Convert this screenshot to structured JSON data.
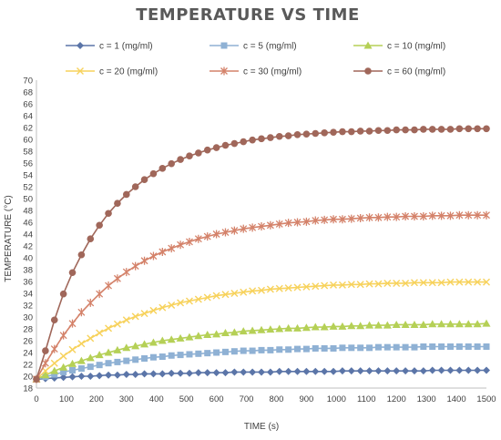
{
  "chart_data": {
    "type": "line",
    "title": "TEMPERATURE VS TIME",
    "xlabel": "TIME (s)",
    "ylabel": "TEMPERATURE (°C)",
    "xlim": [
      0,
      1500
    ],
    "ylim": [
      18,
      70
    ],
    "x_ticks": [
      0,
      100,
      200,
      300,
      400,
      500,
      600,
      700,
      800,
      900,
      1000,
      1100,
      1200,
      1300,
      1400,
      1500
    ],
    "y_ticks": [
      18,
      20,
      22,
      24,
      26,
      28,
      30,
      32,
      34,
      36,
      38,
      40,
      42,
      44,
      46,
      48,
      50,
      52,
      54,
      56,
      58,
      60,
      62,
      64,
      66,
      68,
      70
    ],
    "grid": false,
    "legend_position": "top",
    "x": [
      0,
      30,
      60,
      90,
      120,
      150,
      180,
      210,
      240,
      270,
      300,
      330,
      360,
      390,
      420,
      450,
      480,
      510,
      540,
      570,
      600,
      630,
      660,
      690,
      720,
      750,
      780,
      810,
      840,
      870,
      900,
      930,
      960,
      990,
      1020,
      1050,
      1080,
      1110,
      1140,
      1170,
      1200,
      1230,
      1260,
      1290,
      1320,
      1350,
      1380,
      1410,
      1440,
      1470,
      1500
    ],
    "series": [
      {
        "name": "c = 1 (mg/ml)",
        "color": "#5b75a8",
        "marker": "diamond",
        "values": [
          19.5,
          19.6,
          19.7,
          19.8,
          19.9,
          20.0,
          20.0,
          20.1,
          20.2,
          20.2,
          20.3,
          20.3,
          20.4,
          20.4,
          20.4,
          20.5,
          20.5,
          20.5,
          20.6,
          20.6,
          20.6,
          20.6,
          20.7,
          20.7,
          20.7,
          20.7,
          20.7,
          20.8,
          20.8,
          20.8,
          20.8,
          20.8,
          20.8,
          20.8,
          20.9,
          20.9,
          20.9,
          20.9,
          20.9,
          20.9,
          20.9,
          20.9,
          20.9,
          20.9,
          21.0,
          21.0,
          21.0,
          21.0,
          21.0,
          21.0,
          21.0
        ]
      },
      {
        "name": "c = 5 (mg/ml)",
        "color": "#8fb1d4",
        "marker": "square",
        "values": [
          19.5,
          19.9,
          20.3,
          20.7,
          21.0,
          21.3,
          21.6,
          21.9,
          22.2,
          22.4,
          22.6,
          22.8,
          23.0,
          23.2,
          23.3,
          23.5,
          23.6,
          23.7,
          23.8,
          23.9,
          24.0,
          24.1,
          24.2,
          24.3,
          24.3,
          24.4,
          24.4,
          24.5,
          24.5,
          24.6,
          24.6,
          24.7,
          24.7,
          24.7,
          24.8,
          24.8,
          24.8,
          24.8,
          24.9,
          24.9,
          24.9,
          24.9,
          24.9,
          25.0,
          25.0,
          25.0,
          25.0,
          25.0,
          25.0,
          25.0,
          25.0
        ]
      },
      {
        "name": "c = 10 (mg/ml)",
        "color": "#b5d056",
        "marker": "triangle",
        "values": [
          19.5,
          20.2,
          20.9,
          21.5,
          22.1,
          22.6,
          23.1,
          23.6,
          24.0,
          24.4,
          24.8,
          25.1,
          25.4,
          25.7,
          26.0,
          26.2,
          26.4,
          26.6,
          26.8,
          27.0,
          27.1,
          27.3,
          27.4,
          27.6,
          27.7,
          27.8,
          27.9,
          28.0,
          28.1,
          28.1,
          28.2,
          28.3,
          28.3,
          28.4,
          28.4,
          28.5,
          28.5,
          28.6,
          28.6,
          28.6,
          28.7,
          28.7,
          28.7,
          28.7,
          28.8,
          28.8,
          28.8,
          28.8,
          28.8,
          28.8,
          28.9
        ]
      },
      {
        "name": "c = 20 (mg/ml)",
        "color": "#f7d25c",
        "marker": "x",
        "values": [
          19.5,
          20.9,
          22.2,
          23.4,
          24.5,
          25.5,
          26.4,
          27.3,
          28.1,
          28.8,
          29.5,
          30.1,
          30.6,
          31.1,
          31.6,
          32.0,
          32.4,
          32.7,
          33.0,
          33.3,
          33.6,
          33.8,
          34.0,
          34.2,
          34.4,
          34.5,
          34.7,
          34.8,
          34.9,
          35.0,
          35.1,
          35.2,
          35.3,
          35.4,
          35.4,
          35.5,
          35.5,
          35.6,
          35.6,
          35.7,
          35.7,
          35.7,
          35.8,
          35.8,
          35.8,
          35.8,
          35.9,
          35.9,
          35.9,
          35.9,
          35.9
        ]
      },
      {
        "name": "c = 30 (mg/ml)",
        "color": "#d4826a",
        "marker": "star",
        "values": [
          19.5,
          22.2,
          24.6,
          26.9,
          28.9,
          30.8,
          32.4,
          33.9,
          35.3,
          36.5,
          37.6,
          38.6,
          39.5,
          40.3,
          41.0,
          41.6,
          42.2,
          42.7,
          43.2,
          43.6,
          44.0,
          44.3,
          44.6,
          44.9,
          45.1,
          45.3,
          45.5,
          45.7,
          45.9,
          46.0,
          46.1,
          46.3,
          46.4,
          46.5,
          46.5,
          46.6,
          46.7,
          46.8,
          46.8,
          46.9,
          46.9,
          47.0,
          47.0,
          47.0,
          47.1,
          47.1,
          47.1,
          47.2,
          47.2,
          47.2,
          47.2
        ]
      },
      {
        "name": "c = 60 (mg/ml)",
        "color": "#a0675a",
        "marker": "circle",
        "values": [
          19.5,
          24.3,
          29.5,
          33.9,
          37.5,
          40.5,
          43.2,
          45.5,
          47.5,
          49.2,
          50.7,
          52.0,
          53.2,
          54.2,
          55.1,
          55.9,
          56.6,
          57.2,
          57.7,
          58.2,
          58.6,
          59.0,
          59.3,
          59.6,
          59.9,
          60.1,
          60.3,
          60.5,
          60.6,
          60.8,
          60.9,
          61.0,
          61.1,
          61.2,
          61.3,
          61.3,
          61.4,
          61.4,
          61.5,
          61.5,
          61.6,
          61.6,
          61.6,
          61.7,
          61.7,
          61.7,
          61.7,
          61.8,
          61.8,
          61.8,
          61.8
        ]
      }
    ]
  }
}
